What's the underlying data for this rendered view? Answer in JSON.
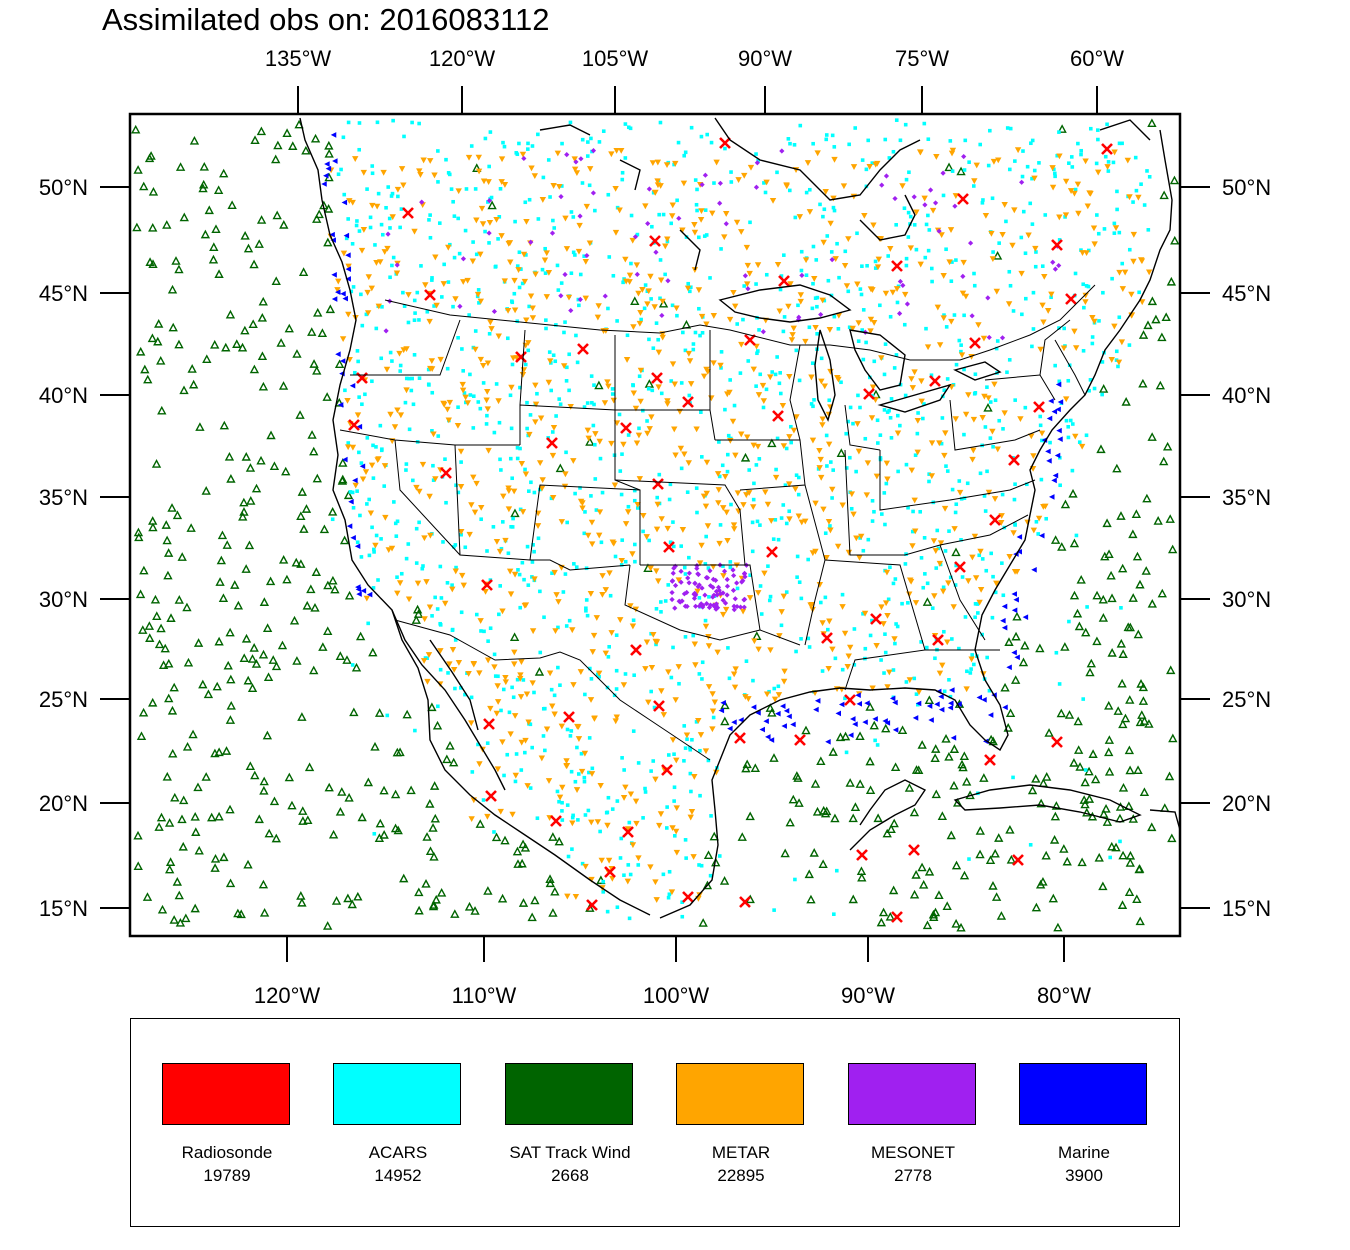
{
  "title": "Assimilated obs on: 2016083112",
  "map": {
    "top_ticks": [
      "135°W",
      "120°W",
      "105°W",
      "90°W",
      "75°W",
      "60°W"
    ],
    "bottom_ticks": [
      "120°W",
      "110°W",
      "100°W",
      "90°W",
      "80°W"
    ],
    "lat_ticks": [
      "50°N",
      "45°N",
      "40°N",
      "35°N",
      "30°N",
      "25°N",
      "20°N",
      "15°N"
    ]
  },
  "legend": [
    {
      "name": "Radiosonde",
      "count": "19789",
      "color": "#ff0000",
      "marker": "x-mark"
    },
    {
      "name": "ACARS",
      "count": "14952",
      "color": "#00ffff",
      "marker": "dot"
    },
    {
      "name": "SAT Track Wind",
      "count": "2668",
      "color": "#006400",
      "marker": "open-triangle"
    },
    {
      "name": "METAR",
      "count": "22895",
      "color": "#ffa500",
      "marker": "down-triangle"
    },
    {
      "name": "MESONET",
      "count": "2778",
      "color": "#a020f0",
      "marker": "diamond"
    },
    {
      "name": "Marine",
      "count": "3900",
      "color": "#0000ff",
      "marker": "left-triangle"
    }
  ]
}
